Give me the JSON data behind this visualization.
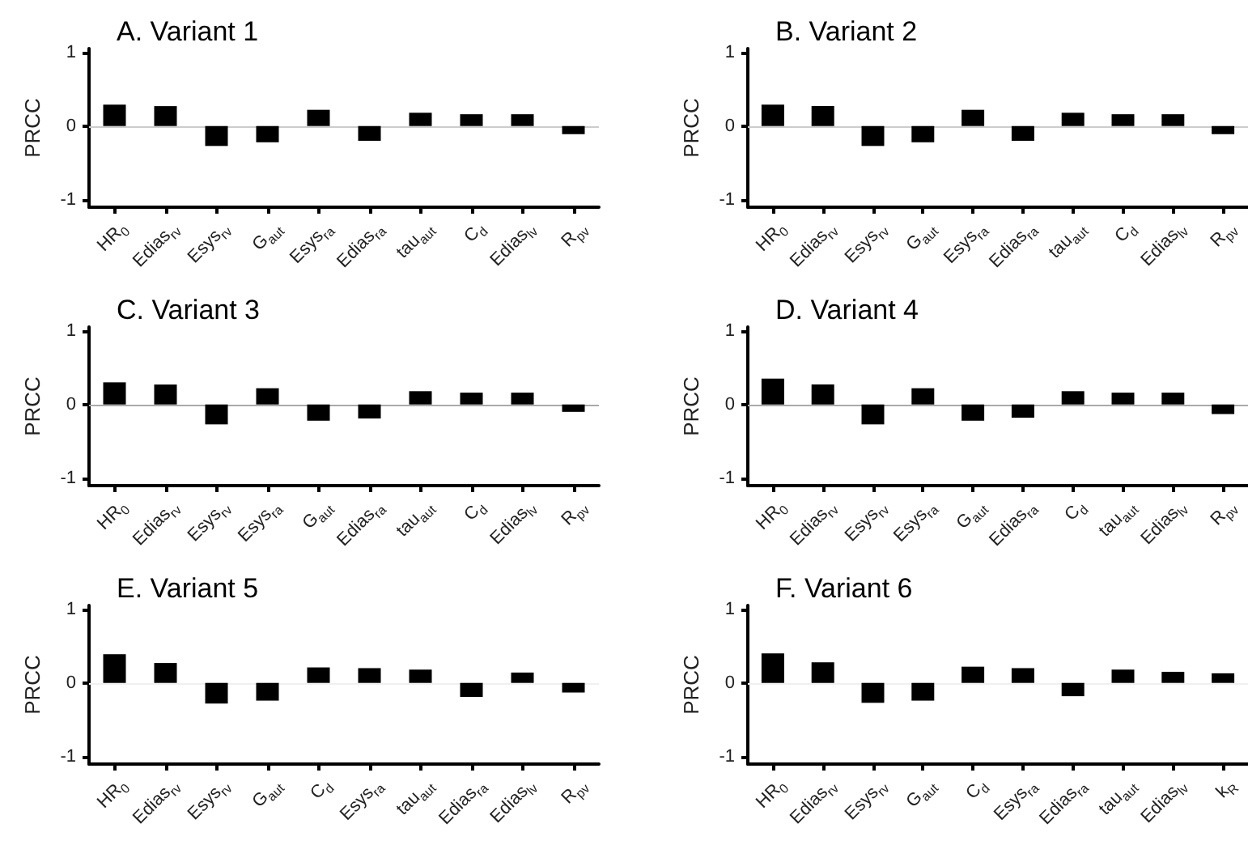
{
  "chart_data": [
    {
      "type": "bar",
      "title": "A. Variant 1",
      "ylabel": "PRCC",
      "categories": [
        "HR$_{0}$",
        "Edias$_{rv}$",
        "Esys$_{rv}$",
        "G$_{aut}$",
        "Esys$_{ra}$",
        "Edias$_{ra}$",
        "tau$_{aut}$",
        "C$_{d}$",
        "Edias$_{lv}$",
        "R$_{pv}$"
      ],
      "values": [
        0.29,
        0.27,
        -0.27,
        -0.22,
        0.22,
        -0.2,
        0.18,
        0.16,
        0.16,
        -0.11
      ],
      "color": "#000000",
      "ylim": [
        -1.1,
        1.05
      ],
      "yticks": [
        -1,
        0,
        1
      ],
      "grid": false,
      "ref_lines": [
        {
          "axis": "y",
          "value": 0,
          "color": "#cccccc"
        }
      ]
    },
    {
      "type": "bar",
      "title": "B. Variant 2",
      "ylabel": "PRCC",
      "categories": [
        "HR$_{0}$",
        "Edias$_{rv}$",
        "Esys$_{rv}$",
        "G$_{aut}$",
        "Esys$_{ra}$",
        "Edias$_{ra}$",
        "tau$_{aut}$",
        "C$_{d}$",
        "Edias$_{lv}$",
        "R$_{pv}$"
      ],
      "values": [
        0.29,
        0.27,
        -0.27,
        -0.22,
        0.22,
        -0.2,
        0.18,
        0.16,
        0.16,
        -0.11
      ],
      "color": "#000000",
      "ylim": [
        -1.1,
        1.05
      ],
      "yticks": [
        -1,
        0,
        1
      ],
      "grid": false,
      "ref_lines": [
        {
          "axis": "y",
          "value": 0,
          "color": "#cccccc"
        }
      ]
    },
    {
      "type": "bar",
      "title": "C. Variant 3",
      "ylabel": "PRCC",
      "categories": [
        "HR$_{0}$",
        "Edias$_{rv}$",
        "Esys$_{rv}$",
        "Esys$_{ra}$",
        "G$_{aut}$",
        "Edias$_{ra}$",
        "tau$_{aut}$",
        "C$_{d}$",
        "Edias$_{lv}$",
        "R$_{pv}$"
      ],
      "values": [
        0.3,
        0.27,
        -0.27,
        0.22,
        -0.22,
        -0.19,
        0.18,
        0.16,
        0.16,
        -0.1
      ],
      "color": "#000000",
      "ylim": [
        -1.1,
        1.05
      ],
      "yticks": [
        -1,
        0,
        1
      ],
      "grid": false,
      "ref_lines": [
        {
          "axis": "y",
          "value": 0,
          "color": "#aaaaaa"
        }
      ]
    },
    {
      "type": "bar",
      "title": "D. Variant 4",
      "ylabel": "PRCC",
      "categories": [
        "HR$_{0}$",
        "Edias$_{rv}$",
        "Esys$_{rv}$",
        "Esys$_{ra}$",
        "G$_{aut}$",
        "Edias$_{ra}$",
        "C$_{d}$",
        "tau$_{aut}$",
        "Edias$_{lv}$",
        "R$_{pv}$"
      ],
      "values": [
        0.35,
        0.27,
        -0.27,
        0.22,
        -0.22,
        -0.18,
        0.18,
        0.16,
        0.16,
        -0.13
      ],
      "color": "#000000",
      "ylim": [
        -1.1,
        1.05
      ],
      "yticks": [
        -1,
        0,
        1
      ],
      "grid": false,
      "ref_lines": [
        {
          "axis": "y",
          "value": 0,
          "color": "#aaaaaa"
        }
      ]
    },
    {
      "type": "bar",
      "title": "E. Variant 5",
      "ylabel": "PRCC",
      "categories": [
        "HR$_{0}$",
        "Edias$_{rv}$",
        "Esys$_{rv}$",
        "G$_{aut}$",
        "C$_{d}$",
        "Esys$_{ra}$",
        "tau$_{aut}$",
        "Edias$_{ra}$",
        "Edias$_{lv}$",
        "R$_{pv}$"
      ],
      "values": [
        0.39,
        0.27,
        -0.28,
        -0.24,
        0.21,
        0.2,
        0.18,
        -0.19,
        0.14,
        -0.13
      ],
      "color": "#000000",
      "ylim": [
        -1.1,
        1.05
      ],
      "yticks": [
        -1,
        0,
        1
      ],
      "grid": false,
      "ref_lines": [
        {
          "axis": "y",
          "value": 0,
          "color": "#f0f0f0"
        }
      ]
    },
    {
      "type": "bar",
      "title": "F. Variant 6",
      "ylabel": "PRCC",
      "categories": [
        "HR$_{0}$",
        "Edias$_{rv}$",
        "Esys$_{rv}$",
        "G$_{aut}$",
        "C$_{d}$",
        "Esys$_{ra}$",
        "Edias$_{ra}$",
        "tau$_{aut}$",
        "Edias$_{lv}$",
        "k$_{R}$"
      ],
      "values": [
        0.4,
        0.28,
        -0.27,
        -0.24,
        0.22,
        0.2,
        -0.18,
        0.18,
        0.15,
        0.13
      ],
      "color": "#000000",
      "ylim": [
        -1.1,
        1.05
      ],
      "yticks": [
        -1,
        0,
        1
      ],
      "grid": false,
      "ref_lines": [
        {
          "axis": "y",
          "value": 0,
          "color": "#f0f0f0"
        }
      ]
    }
  ]
}
